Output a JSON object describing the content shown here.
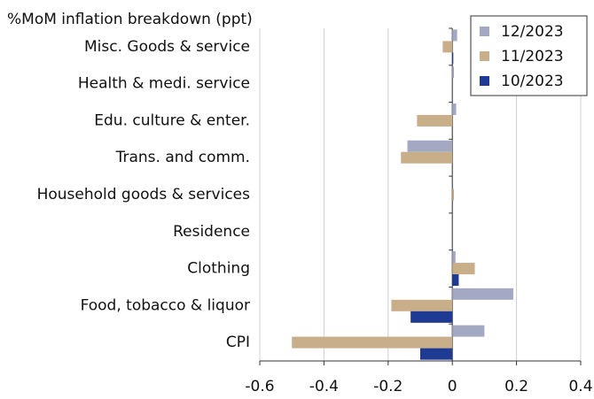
{
  "chart_data": {
    "type": "barh",
    "title": "%MoM inflation breakdown (ppt)",
    "categories": [
      "Misc. Goods & service",
      "Health & medi. service",
      "Edu. culture & enter.",
      "Trans. and comm.",
      "Household goods & services",
      "Residence",
      "Clothing",
      "Food, tobacco & liquor",
      "CPI"
    ],
    "series": [
      {
        "name": "12/2023",
        "color": "#a3a8c3",
        "values": [
          0.015,
          0.005,
          0.012,
          -0.14,
          0,
          0,
          0.01,
          0.19,
          0.1
        ]
      },
      {
        "name": "11/2023",
        "color": "#c9ae8a",
        "values": [
          -0.03,
          0,
          -0.11,
          -0.16,
          0.005,
          0,
          0.07,
          -0.19,
          -0.5
        ]
      },
      {
        "name": "10/2023",
        "color": "#1f3a93",
        "values": [
          0.003,
          0,
          0,
          0,
          0,
          0,
          0.02,
          -0.13,
          -0.1
        ]
      }
    ],
    "xlim": [
      -0.6,
      0.4
    ],
    "xticks": [
      -0.6,
      -0.4,
      -0.2,
      0,
      0.2,
      0.4
    ],
    "grid": true,
    "legend": "upper right"
  }
}
